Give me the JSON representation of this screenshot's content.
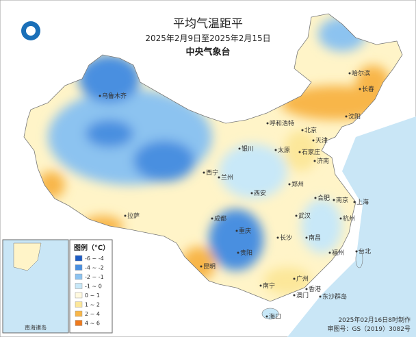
{
  "header": {
    "title": "平均气温距平",
    "subtitle": "2025年2月9日至2025年2月15日",
    "agency": "中央气象台"
  },
  "legend": {
    "title": "图例（℃）",
    "items": [
      {
        "label": "-6 ~ -4",
        "color": "#1d5cc4"
      },
      {
        "label": "-4 ~ -2",
        "color": "#4a8fe0"
      },
      {
        "label": "-2 ~ -1",
        "color": "#8cc3f0"
      },
      {
        "label": "-1 ~ 0",
        "color": "#c8e8f8"
      },
      {
        "label": "0 ~ 1",
        "color": "#fff9df"
      },
      {
        "label": "1 ~ 2",
        "color": "#fce79a"
      },
      {
        "label": "2 ~ 4",
        "color": "#f8b648"
      },
      {
        "label": "4 ~ 6",
        "color": "#ef7a1c"
      }
    ]
  },
  "cities": [
    "乌鲁木齐",
    "哈尔滨",
    "长春",
    "沈阳",
    "呼和浩特",
    "北京",
    "天津",
    "石家庄",
    "太原",
    "济南",
    "银川",
    "西宁",
    "兰州",
    "郑州",
    "西安",
    "合肥",
    "南京",
    "上海",
    "拉萨",
    "成都",
    "武汉",
    "杭州",
    "重庆",
    "长沙",
    "南昌",
    "贵阳",
    "福州",
    "台北",
    "昆明",
    "广州",
    "南宁",
    "香港",
    "澳门",
    "海口",
    "东沙群岛"
  ],
  "inset": {
    "label": "南海诸岛"
  },
  "footer": {
    "made": "2025年02月16日8时制作",
    "approval": "审图号：GS（2019）3082号"
  }
}
